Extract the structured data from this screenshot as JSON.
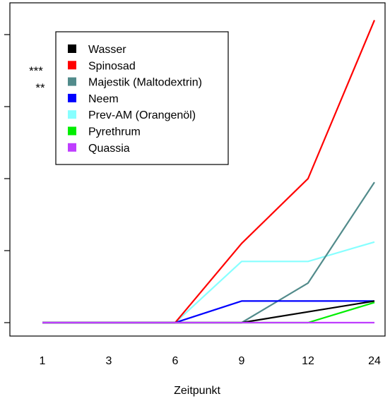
{
  "chart_data": {
    "type": "line",
    "title": "",
    "xlabel": "Zeitpunkt",
    "ylabel": "",
    "categories": [
      "1",
      "3",
      "6",
      "9",
      "12",
      "24"
    ],
    "grid": false,
    "legend_position": "top-left",
    "series": [
      {
        "name": "Wasser",
        "color": "#000000",
        "values": [
          0,
          0,
          0,
          0,
          0.15,
          0.3
        ]
      },
      {
        "name": "Spinosad",
        "color": "#ff0000",
        "values": [
          0,
          0,
          0,
          1.1,
          2.0,
          4.2
        ]
      },
      {
        "name": "Majestik (Maltodextrin)",
        "color": "#528b8b",
        "values": [
          0,
          0,
          0,
          0,
          0.55,
          1.95
        ]
      },
      {
        "name": "Neem",
        "color": "#0000ff",
        "values": [
          0,
          0,
          0,
          0.3,
          0.3,
          0.3
        ]
      },
      {
        "name": "Prev-AM (Orangenöl)",
        "color": "#87ffff",
        "values": [
          0,
          0,
          0,
          0.85,
          0.85,
          1.12
        ]
      },
      {
        "name": "Pyrethrum",
        "color": "#00ee00",
        "values": [
          0,
          0,
          0,
          0,
          0,
          0.28
        ]
      },
      {
        "name": "Quassia",
        "color": "#bf3eff",
        "values": [
          0,
          0,
          0,
          0,
          0,
          0
        ]
      }
    ],
    "ylim": [
      -0.15,
      4.4
    ],
    "yticks": [
      0,
      1,
      2,
      3,
      4
    ],
    "annotations": [
      "***",
      "**"
    ]
  }
}
